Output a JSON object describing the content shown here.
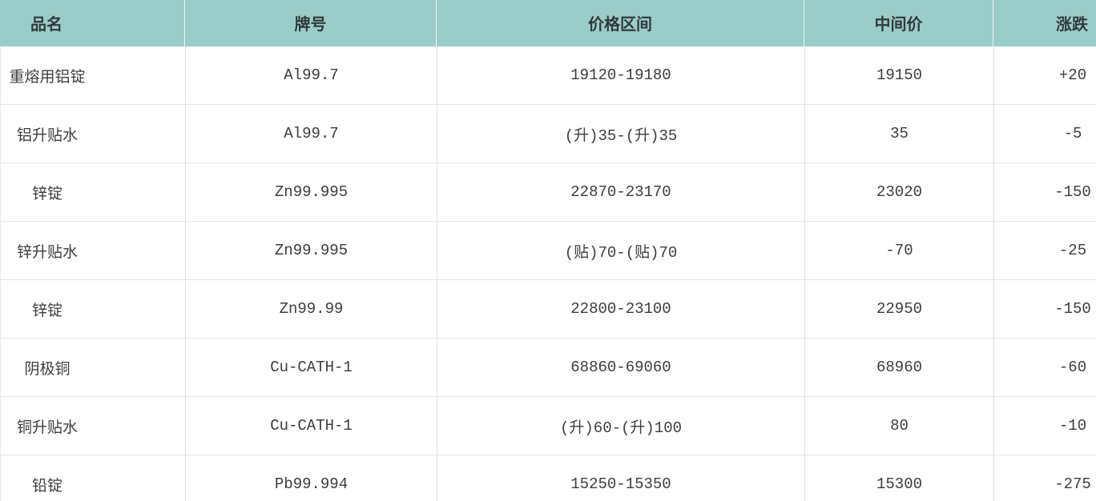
{
  "page": {
    "background": "#ffffff"
  },
  "colors": {
    "header_bg": "#9accc9",
    "header_text": "#313b3c",
    "body_text": "#3d3d3d",
    "row_line": "#e4e4e4",
    "column_line": "#e0e0e0",
    "header_divider": "#edf4f3"
  },
  "table": {
    "columns": [
      "品名",
      "牌号",
      "价格区间",
      "中间价",
      "涨跌"
    ],
    "rows": [
      {
        "name": "重熔用铝锭",
        "grade": "Al99.7",
        "range": "19120-19180",
        "mid": "19150",
        "change": "+20"
      },
      {
        "name": "铝升贴水",
        "grade": "Al99.7",
        "range": "(升)35-(升)35",
        "mid": "35",
        "change": "-5"
      },
      {
        "name": "锌锭",
        "grade": "Zn99.995",
        "range": "22870-23170",
        "mid": "23020",
        "change": "-150"
      },
      {
        "name": "锌升贴水",
        "grade": "Zn99.995",
        "range": "(贴)70-(贴)70",
        "mid": "-70",
        "change": "-25"
      },
      {
        "name": "锌锭",
        "grade": "Zn99.99",
        "range": "22800-23100",
        "mid": "22950",
        "change": "-150"
      },
      {
        "name": "阴极铜",
        "grade": "Cu-CATH-1",
        "range": "68860-69060",
        "mid": "68960",
        "change": "-60"
      },
      {
        "name": "铜升贴水",
        "grade": "Cu-CATH-1",
        "range": "(升)60-(升)100",
        "mid": "80",
        "change": "-10"
      },
      {
        "name": "铅锭",
        "grade": "Pb99.994",
        "range": "15250-15350",
        "mid": "15300",
        "change": "-275"
      }
    ]
  }
}
